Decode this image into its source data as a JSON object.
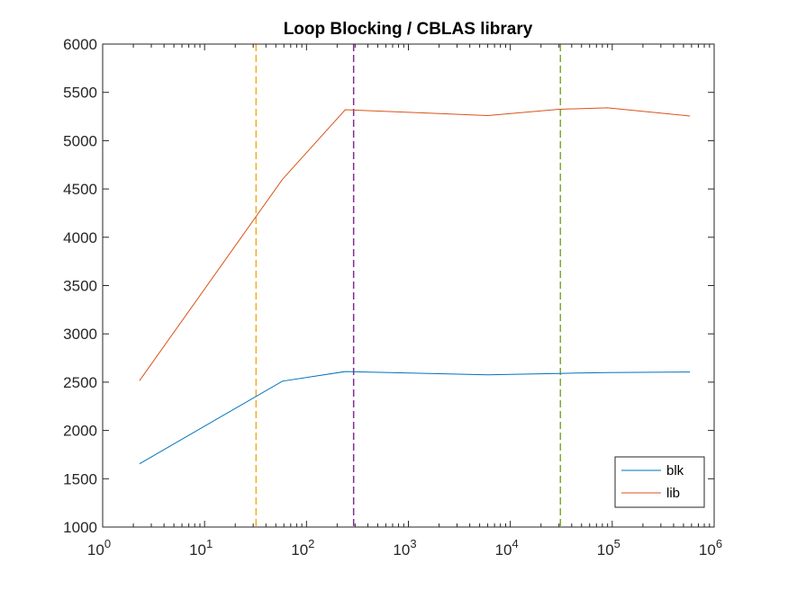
{
  "chart_data": {
    "type": "line",
    "title": "Loop Blocking / CBLAS library",
    "xlabel": "",
    "ylabel": "",
    "xscale": "log",
    "xlim": [
      1,
      1000000
    ],
    "ylim": [
      1000,
      6000
    ],
    "x_ticks": [
      1,
      10,
      100,
      1000,
      10000,
      100000,
      1000000
    ],
    "x_tick_exponents": [
      "0",
      "1",
      "2",
      "3",
      "4",
      "5",
      "6"
    ],
    "x_tick_base": "10",
    "y_ticks": [
      1000,
      1500,
      2000,
      2500,
      3000,
      3500,
      4000,
      4500,
      5000,
      5500,
      6000
    ],
    "y_tick_labels": [
      "1000",
      "1500",
      "2000",
      "2500",
      "3000",
      "3500",
      "4000",
      "4500",
      "5000",
      "5500",
      "6000"
    ],
    "grid": false,
    "legend_position": "bottom-right",
    "series": [
      {
        "name": "blk",
        "color": "#0072BD",
        "x": [
          2.3,
          58,
          240,
          6000,
          30000,
          90000,
          580000
        ],
        "y": [
          1655,
          2510,
          2610,
          2575,
          2590,
          2600,
          2605
        ]
      },
      {
        "name": "lib",
        "color": "#D95319",
        "x": [
          2.3,
          58,
          240,
          6000,
          30000,
          90000,
          580000
        ],
        "y": [
          2515,
          4600,
          5320,
          5260,
          5325,
          5340,
          5255
        ]
      }
    ],
    "vertical_lines": [
      {
        "x": 32,
        "color": "#EDB120",
        "style": "dashed"
      },
      {
        "x": 290,
        "color": "#7E2F8E",
        "style": "dashed"
      },
      {
        "x": 31000,
        "color": "#77AC30",
        "style": "dashed"
      }
    ]
  }
}
